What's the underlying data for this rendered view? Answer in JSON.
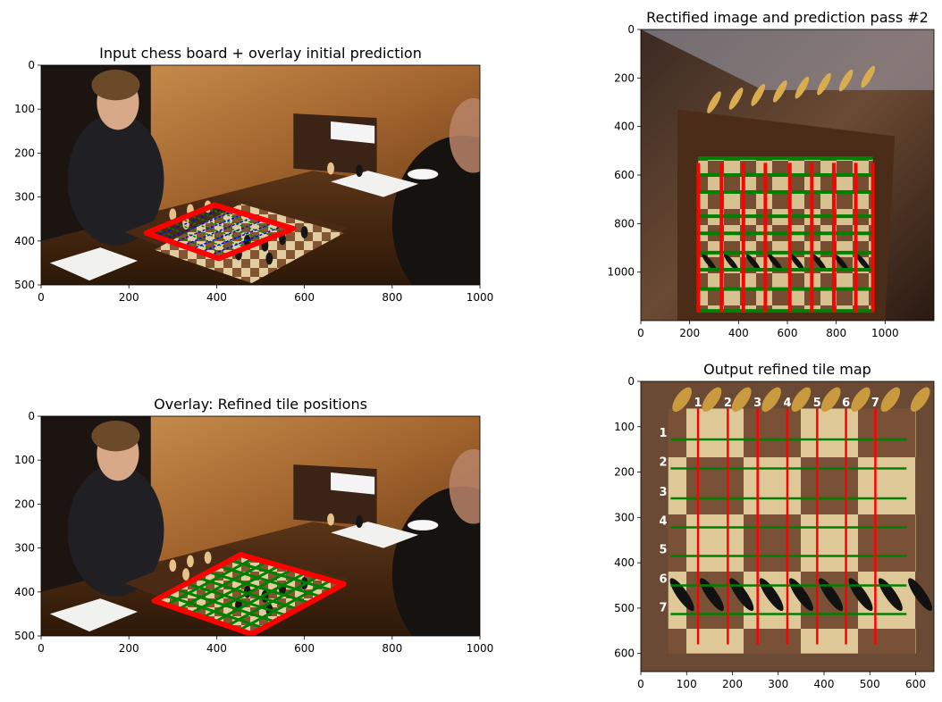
{
  "figure": {
    "panels": [
      {
        "id": "p1",
        "title": "Input chess board + overlay initial prediction",
        "xlim": [
          0,
          1000
        ],
        "ylim": [
          500,
          0
        ],
        "xticks": [
          0,
          200,
          400,
          600,
          800,
          1000
        ],
        "yticks": [
          0,
          100,
          200,
          300,
          400,
          500
        ],
        "xtick_labels": [
          "0",
          "200",
          "400",
          "600",
          "800",
          "1000"
        ],
        "ytick_labels": [
          "0",
          "100",
          "200",
          "300",
          "400",
          "500"
        ]
      },
      {
        "id": "p2",
        "title": "Rectified image and prediction pass #2",
        "xlim": [
          0,
          1200
        ],
        "ylim": [
          1200,
          0
        ],
        "xticks": [
          0,
          200,
          400,
          600,
          800,
          1000
        ],
        "yticks": [
          0,
          200,
          400,
          600,
          800,
          1000
        ],
        "xtick_labels": [
          "0",
          "200",
          "400",
          "600",
          "800",
          "1000"
        ],
        "ytick_labels": [
          "0",
          "200",
          "400",
          "600",
          "800",
          "1000"
        ]
      },
      {
        "id": "p3",
        "title": "Overlay: Refined tile positions",
        "xlim": [
          0,
          1000
        ],
        "ylim": [
          500,
          0
        ],
        "xticks": [
          0,
          200,
          400,
          600,
          800,
          1000
        ],
        "yticks": [
          0,
          100,
          200,
          300,
          400,
          500
        ],
        "xtick_labels": [
          "0",
          "200",
          "400",
          "600",
          "800",
          "1000"
        ],
        "ytick_labels": [
          "0",
          "100",
          "200",
          "300",
          "400",
          "500"
        ]
      },
      {
        "id": "p4",
        "title": "Output refined tile map",
        "xlim": [
          0,
          640
        ],
        "ylim": [
          640,
          0
        ],
        "xticks": [
          0,
          100,
          200,
          300,
          400,
          500,
          600
        ],
        "yticks": [
          0,
          100,
          200,
          300,
          400,
          500,
          600
        ],
        "xtick_labels": [
          "0",
          "100",
          "200",
          "300",
          "400",
          "500",
          "600"
        ],
        "ytick_labels": [
          "0",
          "100",
          "200",
          "300",
          "400",
          "500",
          "600"
        ]
      }
    ],
    "initial_board_outline": [
      [
        240,
        382
      ],
      [
        395,
        318
      ],
      [
        575,
        372
      ],
      [
        405,
        440
      ]
    ],
    "refined_board_outline": [
      [
        258,
        420
      ],
      [
        455,
        315
      ],
      [
        690,
        382
      ],
      [
        480,
        496
      ]
    ],
    "rectified_grid": {
      "vertical_x": [
        235,
        330,
        420,
        510,
        610,
        700,
        790,
        880,
        950
      ],
      "horizontal_y": [
        530,
        600,
        670,
        770,
        840,
        920,
        990,
        1070,
        1160
      ],
      "x_range": [
        235,
        950
      ],
      "y_range": [
        530,
        1165
      ]
    },
    "tile_map": {
      "vertical_x": [
        125,
        190,
        255,
        320,
        385,
        448,
        512
      ],
      "horizontal_y": [
        128,
        192,
        258,
        322,
        385,
        450,
        513
      ],
      "vertical_y_range": [
        60,
        580
      ],
      "horizontal_x_range": [
        65,
        580
      ],
      "column_labels": [
        "1",
        "2",
        "3",
        "4",
        "5",
        "6",
        "7"
      ],
      "row_labels": [
        "1",
        "2",
        "3",
        "4",
        "5",
        "6",
        "7"
      ]
    },
    "colors": {
      "red": "#ff0000",
      "green": "#008000",
      "blue": "#0000ff",
      "text": "#000000"
    }
  }
}
